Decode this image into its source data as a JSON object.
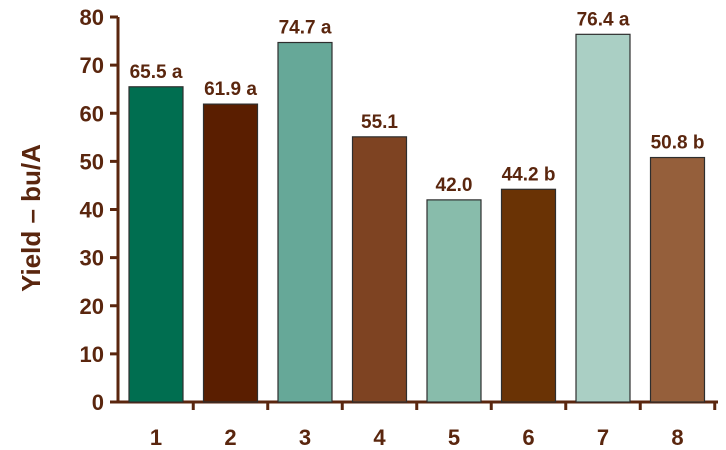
{
  "chart_data": {
    "type": "bar",
    "title": "",
    "xlabel": "",
    "ylabel": "Yield – bu/A",
    "ylim": [
      0,
      80
    ],
    "yticks": [
      0,
      10,
      20,
      30,
      40,
      50,
      60,
      70,
      80
    ],
    "grid": false,
    "categories": [
      "1",
      "2",
      "3",
      "4",
      "5",
      "6",
      "7",
      "8"
    ],
    "values": [
      65.5,
      61.9,
      74.7,
      55.1,
      42.0,
      44.2,
      76.4,
      50.8
    ],
    "data_labels": [
      "65.5 a",
      "61.9 a",
      "74.7 a",
      "55.1",
      "42.0",
      "44.2 b",
      "76.4 a",
      "50.8 b"
    ],
    "colors": [
      "#006e50",
      "#5a1e00",
      "#66a898",
      "#7e4322",
      "#88bcab",
      "#6a3305",
      "#aacfc4",
      "#955f3b"
    ],
    "axis_color": "#5a260e"
  }
}
